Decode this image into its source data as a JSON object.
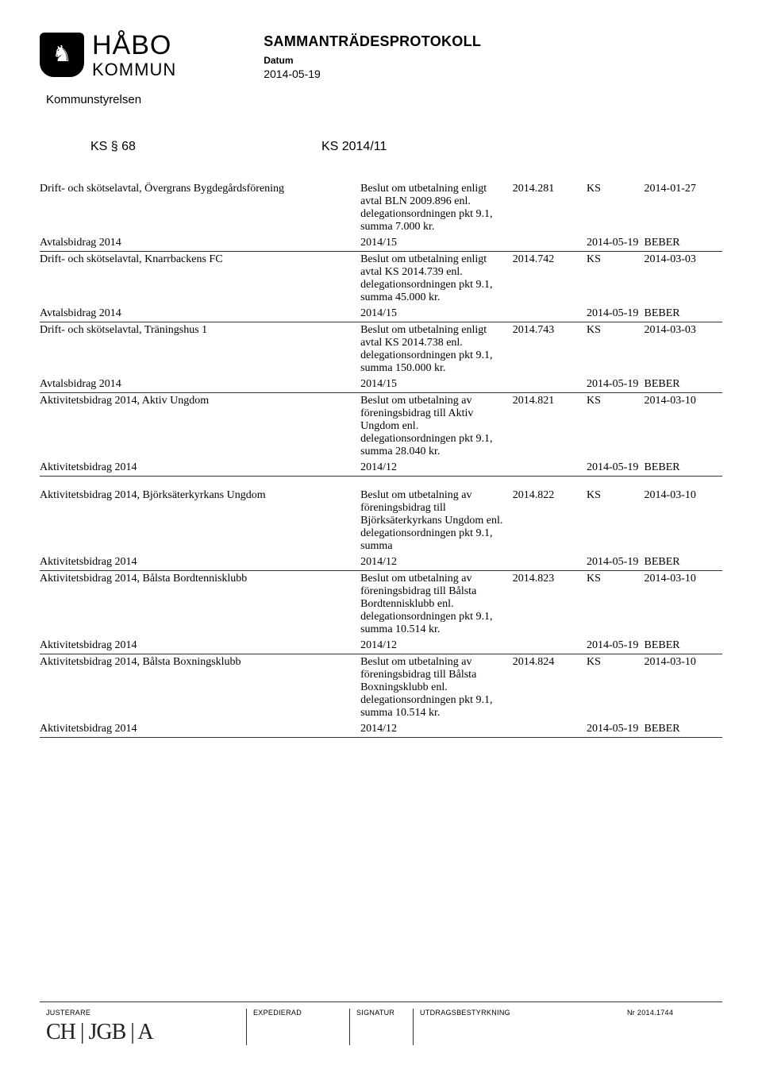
{
  "header": {
    "org_top": "HÅBO",
    "org_bot": "KOMMUN",
    "doc_type": "SAMMANTRÄDESPROTOKOLL",
    "datum_label": "Datum",
    "datum_value": "2014-05-19",
    "committee": "Kommunstyrelsen",
    "section_left": "KS § 68",
    "section_right": "KS 2014/11"
  },
  "rows": [
    {
      "subject": "Drift- och skötselavtal, Övergrans Bygdegårdsförening",
      "desc": "Beslut om utbetalning enligt avtal BLN 2009.896 enl. delegationsordningen pkt 9.1, summa 7.000 kr.",
      "ref": "2014.281",
      "unit": "KS",
      "date": "2014-01-27",
      "sep": false
    },
    {
      "subject": "Avtalsbidrag 2014",
      "desc": "2014/15",
      "ref": "",
      "unit": "2014-05-19",
      "date": "BEBER",
      "sep": true
    },
    {
      "subject": "Drift- och skötselavtal, Knarrbackens FC",
      "desc": "Beslut om utbetalning enligt avtal KS 2014.739 enl. delegationsordningen pkt 9.1, summa 45.000 kr.",
      "ref": "2014.742",
      "unit": "KS",
      "date": "2014-03-03",
      "sep": false
    },
    {
      "subject": "Avtalsbidrag 2014",
      "desc": "2014/15",
      "ref": "",
      "unit": "2014-05-19",
      "date": "BEBER",
      "sep": true
    },
    {
      "subject": "Drift- och skötselavtal, Träningshus 1",
      "desc": "Beslut om utbetalning enligt avtal KS 2014.738 enl. delegationsordningen pkt 9.1, summa 150.000 kr.",
      "ref": "2014.743",
      "unit": "KS",
      "date": "2014-03-03",
      "sep": false
    },
    {
      "subject": "Avtalsbidrag 2014",
      "desc": "2014/15",
      "ref": "",
      "unit": "2014-05-19",
      "date": "BEBER",
      "sep": true
    },
    {
      "subject": "Aktivitetsbidrag 2014, Aktiv Ungdom",
      "desc": "Beslut om utbetalning av föreningsbidrag till Aktiv Ungdom enl. delegationsordningen pkt 9.1, summa 28.040 kr.",
      "ref": "2014.821",
      "unit": "KS",
      "date": "2014-03-10",
      "sep": false
    },
    {
      "subject": "Aktivitetsbidrag 2014",
      "desc": "2014/12",
      "ref": "",
      "unit": "2014-05-19",
      "date": "BEBER",
      "sep": true,
      "gap_after": true
    },
    {
      "subject": "Aktivitetsbidrag 2014, Björksäterkyrkans Ungdom",
      "desc": "Beslut om utbetalning av föreningsbidrag till Björksäterkyrkans Ungdom enl. delegationsordningen pkt 9.1, summa",
      "ref": "2014.822",
      "unit": "KS",
      "date": "2014-03-10",
      "sep": false
    },
    {
      "subject": "Aktivitetsbidrag 2014",
      "desc": "2014/12",
      "ref": "",
      "unit": "2014-05-19",
      "date": "BEBER",
      "sep": true
    },
    {
      "subject": "Aktivitetsbidrag 2014, Bålsta Bordtennisklubb",
      "desc": "Beslut om utbetalning av föreningsbidrag till Bålsta Bordtennisklubb enl. delegationsordningen pkt 9.1, summa 10.514 kr.",
      "ref": "2014.823",
      "unit": "KS",
      "date": "2014-03-10",
      "sep": false
    },
    {
      "subject": "Aktivitetsbidrag 2014",
      "desc": "2014/12",
      "ref": "",
      "unit": "2014-05-19",
      "date": "BEBER",
      "sep": true
    },
    {
      "subject": "Aktivitetsbidrag 2014, Bålsta Boxningsklubb",
      "desc": "Beslut om utbetalning av föreningsbidrag till Bålsta Boxningsklubb enl. delegationsordningen pkt 9.1, summa 10.514 kr.",
      "ref": "2014.824",
      "unit": "KS",
      "date": "2014-03-10",
      "sep": false
    },
    {
      "subject": "Aktivitetsbidrag 2014",
      "desc": "2014/12",
      "ref": "",
      "unit": "2014-05-19",
      "date": "BEBER",
      "sep": true
    }
  ],
  "footer": {
    "justerare": "JUSTERARE",
    "expedierad": "EXPEDIERAD",
    "signatur": "SIGNATUR",
    "utdrag": "UTDRAGSBESTYRKNING",
    "nr": "Nr 2014.1744",
    "scribble": "CH | JGB | A"
  }
}
